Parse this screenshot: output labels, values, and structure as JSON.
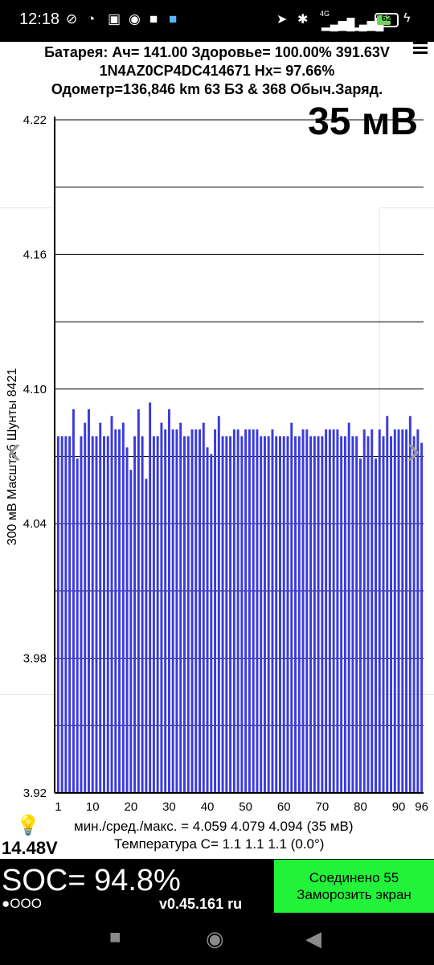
{
  "status_bar": {
    "time": "12:18",
    "network_label": "4G",
    "battery_level": "62",
    "icons": [
      "mute-icon",
      "alarm-icon",
      "nfc-icon",
      "app-icon",
      "square-icon",
      "app-blue-icon",
      "location-icon",
      "bluetooth-icon",
      "vibrate-icon",
      "signal-icon",
      "charging-icon"
    ]
  },
  "header": {
    "line1": "Батарея:  Ач= 141.00  Здоровье= 100.00%   391.63V",
    "line2": "1N4AZ0CP4DC414671   Нх= 97.66%",
    "line3": "Одометр=136,846 km 63 БЗ & 368 Обыч.Заряд."
  },
  "big_value": "35 мВ",
  "y_axis_label": "300 мВ Масштаб  Шунты 8421",
  "stats_line": "мин./сред./макс. = 4.059 4.079 4.094  (35 мВ)",
  "temp_line": "Температура C= 1.1  1.1  1.1  (0.0°)",
  "pack_voltage": "14.48V",
  "soc": "SOC= 94.8%",
  "dots": "●OOO",
  "version": "v0.45.161 ru",
  "connect_button": {
    "line1": "Соединено 55",
    "line2": "Заморозить экран"
  },
  "colors": {
    "bar": "#3b3bde",
    "connect_bg": "#22f23a",
    "bar_bg": "#000000"
  },
  "chart_data": {
    "type": "bar",
    "ylim": [
      3.92,
      4.22
    ],
    "y_ticks": [
      "4.22",
      "4.16",
      "4.10",
      "4.04",
      "3.98",
      "3.92"
    ],
    "y_tick_values": [
      4.22,
      4.16,
      4.1,
      4.04,
      3.98,
      3.92
    ],
    "grid_values": [
      4.22,
      4.19,
      4.16,
      4.13,
      4.1,
      4.07,
      4.04,
      4.01,
      3.98,
      3.95
    ],
    "x_ticks": [
      "1",
      "10",
      "20",
      "30",
      "40",
      "50",
      "60",
      "70",
      "80",
      "90",
      "96"
    ],
    "x_tick_values": [
      1,
      10,
      20,
      30,
      40,
      50,
      60,
      70,
      80,
      90,
      96
    ],
    "grid": true,
    "values": [
      4.079,
      4.079,
      4.079,
      4.079,
      4.091,
      4.069,
      4.079,
      4.085,
      4.091,
      4.079,
      4.079,
      4.085,
      4.079,
      4.079,
      4.088,
      4.082,
      4.082,
      4.085,
      4.074,
      4.064,
      4.079,
      4.091,
      4.079,
      4.06,
      4.094,
      4.079,
      4.079,
      4.085,
      4.082,
      4.091,
      4.082,
      4.082,
      4.085,
      4.079,
      4.079,
      4.082,
      4.082,
      4.082,
      4.085,
      4.074,
      4.071,
      4.082,
      4.088,
      4.079,
      4.079,
      4.079,
      4.082,
      4.082,
      4.079,
      4.082,
      4.082,
      4.082,
      4.082,
      4.079,
      4.079,
      4.079,
      4.082,
      4.079,
      4.079,
      4.079,
      4.079,
      4.085,
      4.079,
      4.079,
      4.082,
      4.082,
      4.079,
      4.079,
      4.079,
      4.079,
      4.082,
      4.082,
      4.082,
      4.082,
      4.079,
      4.079,
      4.085,
      4.079,
      4.079,
      4.069,
      4.082,
      4.079,
      4.082,
      4.069,
      4.082,
      4.079,
      4.088,
      4.079,
      4.082,
      4.082,
      4.082,
      4.082,
      4.088,
      4.079,
      4.082,
      4.076
    ]
  }
}
